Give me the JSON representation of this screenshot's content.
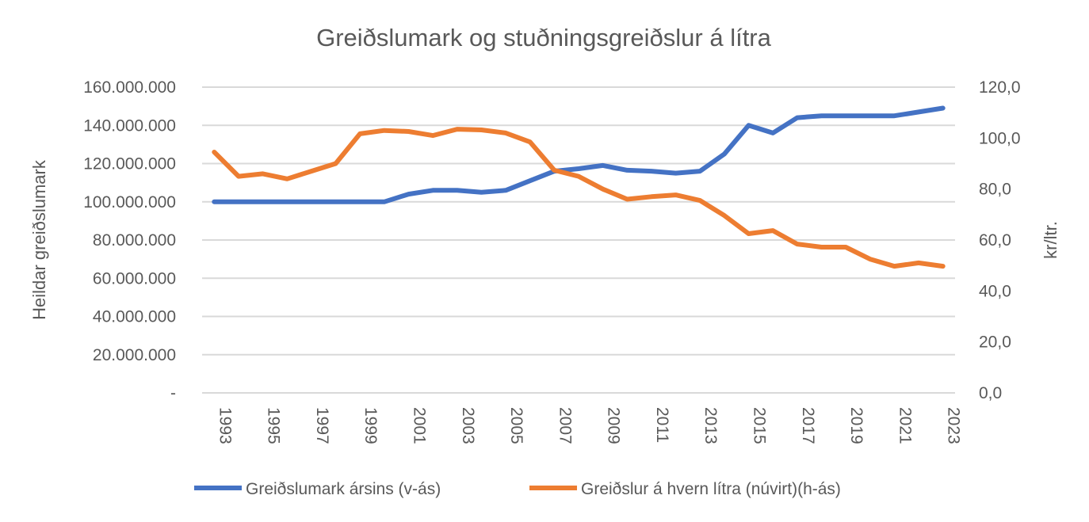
{
  "chart_data": {
    "type": "line",
    "title": "Greiðslumark og stuðningsgreiðslur á lítra",
    "ylabel": "Heildar greiðslumark",
    "y2label": "kr/ltr.",
    "ylim": [
      0,
      160000000
    ],
    "y2lim": [
      0,
      120
    ],
    "yticks": [
      "-",
      "20.000.000",
      "40.000.000",
      "60.000.000",
      "80.000.000",
      "100.000.000",
      "120.000.000",
      "140.000.000",
      "160.000.000"
    ],
    "y2ticks": [
      "0,0",
      "20,0",
      "40,0",
      "60,0",
      "80,0",
      "100,0",
      "120,0"
    ],
    "grid": true,
    "legend_position": "bottom",
    "x": [
      1993,
      1994,
      1995,
      1996,
      1997,
      1998,
      1999,
      2000,
      2001,
      2002,
      2003,
      2004,
      2005,
      2006,
      2007,
      2008,
      2009,
      2010,
      2011,
      2012,
      2013,
      2014,
      2015,
      2016,
      2017,
      2018,
      2019,
      2020,
      2021,
      2022,
      2023
    ],
    "xtick_labels": [
      "1993",
      "1995",
      "1997",
      "1999",
      "2001",
      "2003",
      "2005",
      "2007",
      "2009",
      "2011",
      "2013",
      "2015",
      "2017",
      "2019",
      "2021",
      "2023"
    ],
    "series": [
      {
        "name": "Greiðslumark ársins (v-ás)",
        "axis": "left",
        "color": "#4472C4",
        "values": [
          100000000,
          100000000,
          100000000,
          100000000,
          100000000,
          100000000,
          100000000,
          100000000,
          104000000,
          106000000,
          106000000,
          105000000,
          106000000,
          111000000,
          116000000,
          117300000,
          119000000,
          116500000,
          116000000,
          115000000,
          116000000,
          125000000,
          140000000,
          136000000,
          144000000,
          145000000,
          145000000,
          145000000,
          145000000,
          147000000,
          149000000
        ]
      },
      {
        "name": "Greiðslur á hvern lítra (núvirt)(h-ás)",
        "axis": "right",
        "color": "#ED7D31",
        "values": [
          94.5,
          85,
          86,
          84,
          87,
          90,
          101.7,
          103,
          102.6,
          101,
          103.5,
          103.2,
          102,
          98.5,
          87.4,
          85,
          80,
          76,
          77,
          77.7,
          75.5,
          69.6,
          62.5,
          63.7,
          58.4,
          57.2,
          57.2,
          52.5,
          49.7,
          51,
          49.7
        ]
      }
    ]
  }
}
